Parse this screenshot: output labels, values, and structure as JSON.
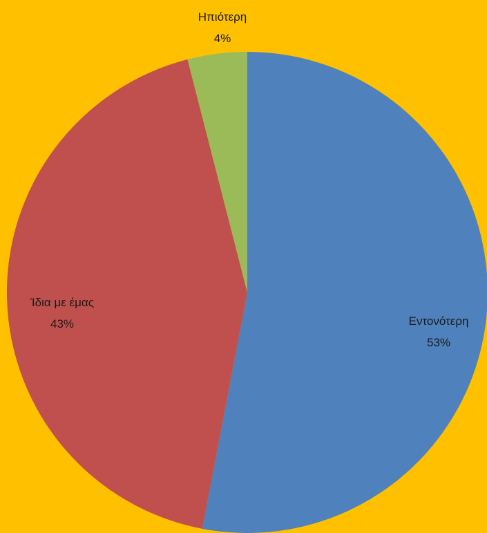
{
  "chart_data": {
    "type": "pie",
    "title": "",
    "colors": {
      "background": "#FFC000"
    },
    "slices": [
      {
        "label": "Εντονότερη",
        "value": 53,
        "value_label": "53%",
        "color": "#4F81BD"
      },
      {
        "label": "Ίδια με έμας",
        "value": 43,
        "value_label": "43%",
        "color": "#C0504D"
      },
      {
        "label": "Ηπιότερη",
        "value": 4,
        "value_label": "4%",
        "color": "#9BBB59"
      }
    ],
    "legend": "none",
    "data_labels": "category and percentage"
  }
}
